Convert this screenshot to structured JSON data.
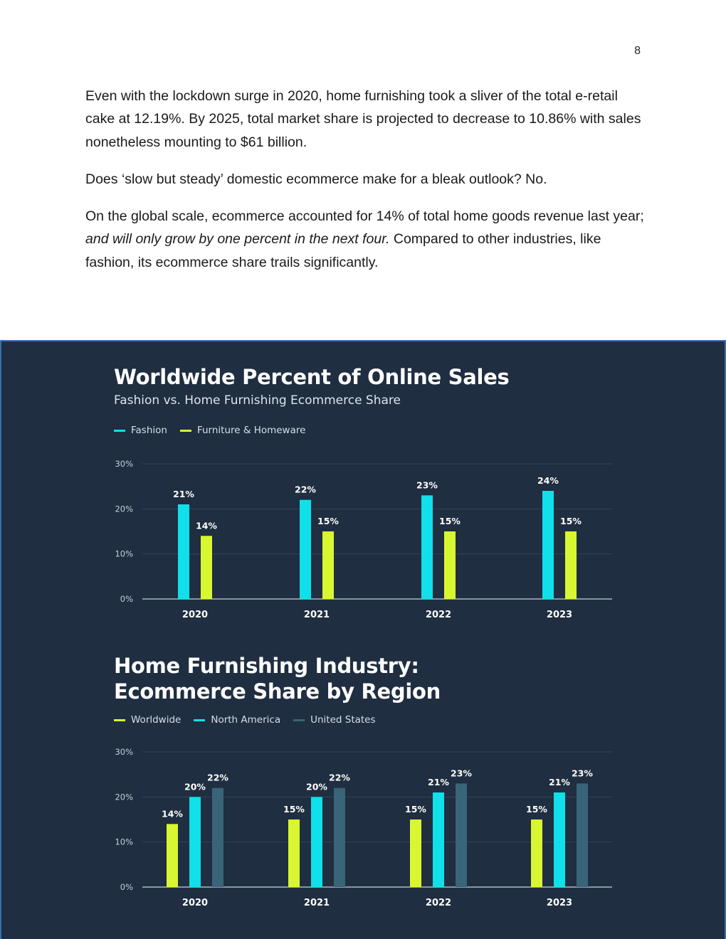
{
  "page_number": "8",
  "paragraphs": {
    "p1": "Even with the lockdown surge in 2020, home furnishing took a sliver of the total e-retail cake at 12.19%. By 2025, total market share is projected to decrease to 10.86% with sales nonetheless mounting to $61 billion.",
    "p2": "Does ‘slow but steady’ domestic ecommerce make for a bleak outlook? No.",
    "p3_start": "On the global scale, ecommerce accounted for 14% of total home goods revenue last year; ",
    "p3_italic": "and will only grow by one percent in the next four.",
    "p3_end": " Compared to other industries, like fashion, its ecommerce share trails significantly."
  },
  "chart_data": [
    {
      "type": "bar",
      "title": "Worldwide Percent of Online Sales",
      "subtitle": "Fashion vs. Home Furnishing Ecommerce Share",
      "categories": [
        "2020",
        "2021",
        "2022",
        "2023"
      ],
      "series": [
        {
          "name": "Fashion",
          "color": "#0fe0ea",
          "values": [
            21,
            22,
            23,
            24
          ],
          "labels": [
            "21%",
            "22%",
            "23%",
            "24%"
          ]
        },
        {
          "name": "Furniture & Homeware",
          "color": "#d8f731",
          "values": [
            14,
            15,
            15,
            15
          ],
          "labels": [
            "14%",
            "15%",
            "15%",
            "15%"
          ]
        }
      ],
      "ylim": [
        0,
        30
      ],
      "yticks": [
        0,
        10,
        20,
        30
      ],
      "ytick_labels": [
        "0%",
        "10%",
        "20%",
        "30%"
      ],
      "grid": true,
      "legend_position": "top-left"
    },
    {
      "type": "bar",
      "title_lines": [
        "Home Furnishing Industry:",
        "Ecommerce Share by Region"
      ],
      "categories": [
        "2020",
        "2021",
        "2022",
        "2023"
      ],
      "series": [
        {
          "name": "Worldwide",
          "color": "#d8f731",
          "values": [
            14,
            15,
            15,
            15
          ],
          "labels": [
            "14%",
            "15%",
            "15%",
            "15%"
          ]
        },
        {
          "name": "North America",
          "color": "#0fe0ea",
          "values": [
            20,
            20,
            21,
            21
          ],
          "labels": [
            "20%",
            "20%",
            "21%",
            "21%"
          ]
        },
        {
          "name": "United States",
          "color": "#3a6478",
          "values": [
            22,
            22,
            23,
            23
          ],
          "labels": [
            "22%",
            "22%",
            "23%",
            "23%"
          ]
        }
      ],
      "ylim": [
        0,
        30
      ],
      "yticks": [
        0,
        10,
        20,
        30
      ],
      "ytick_labels": [
        "0%",
        "10%",
        "20%",
        "30%"
      ],
      "grid": true,
      "legend_position": "top-left"
    }
  ]
}
